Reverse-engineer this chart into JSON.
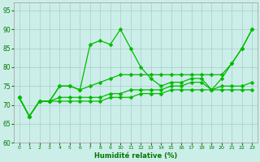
{
  "xlabel": "Humidité relative (%)",
  "bg_color": "#cceee8",
  "grid_color": "#aacccc",
  "line_color": "#00bb00",
  "markersize": 2.5,
  "linewidth": 0.9,
  "ylim": [
    60,
    97
  ],
  "xlim": [
    -0.5,
    23.5
  ],
  "yticks": [
    60,
    65,
    70,
    75,
    80,
    85,
    90,
    95
  ],
  "xticks": [
    0,
    1,
    2,
    3,
    4,
    5,
    6,
    7,
    8,
    9,
    10,
    11,
    12,
    13,
    14,
    15,
    16,
    17,
    18,
    19,
    20,
    21,
    22,
    23
  ],
  "series": [
    [
      72,
      67,
      71,
      71,
      75,
      75,
      74,
      86,
      87,
      86,
      90,
      85,
      80,
      77,
      75,
      76,
      76,
      77,
      77,
      74,
      77,
      81,
      85,
      90
    ],
    [
      72,
      67,
      71,
      71,
      75,
      75,
      74,
      75,
      76,
      77,
      78,
      78,
      78,
      78,
      78,
      78,
      78,
      78,
      78,
      78,
      78,
      81,
      85,
      90
    ],
    [
      72,
      67,
      71,
      71,
      72,
      72,
      72,
      72,
      72,
      73,
      73,
      74,
      74,
      74,
      74,
      75,
      75,
      76,
      76,
      74,
      75,
      75,
      75,
      76
    ],
    [
      72,
      67,
      71,
      71,
      71,
      71,
      71,
      71,
      71,
      72,
      72,
      72,
      73,
      73,
      73,
      74,
      74,
      74,
      74,
      74,
      74,
      74,
      74,
      74
    ]
  ]
}
